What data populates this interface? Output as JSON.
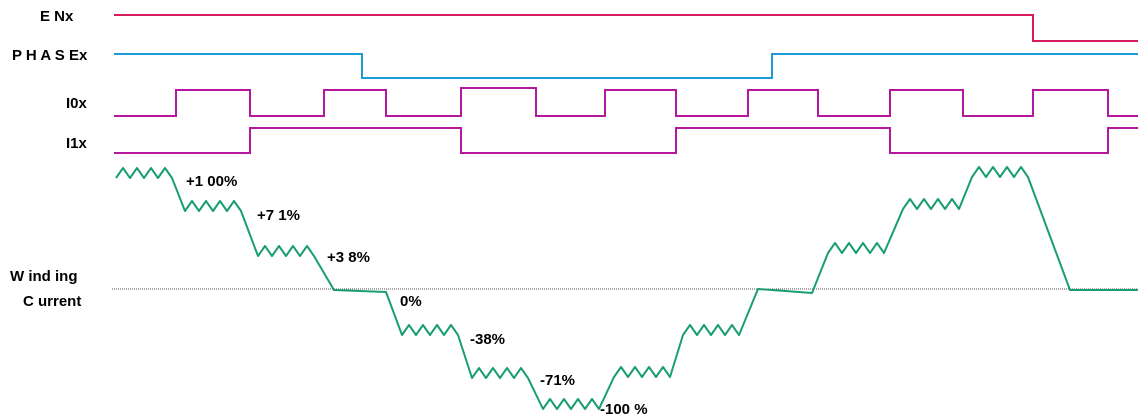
{
  "signals": {
    "en": {
      "label": "E Nx",
      "color": "#d81b60"
    },
    "phase": {
      "label": "P H A S Ex",
      "color": "#1e9ad6"
    },
    "i0": {
      "label": "I0x",
      "color": "#b5179e"
    },
    "i1": {
      "label": "I1x",
      "color": "#b5179e"
    }
  },
  "winding": {
    "label_line1": "W ind ing",
    "label_line2": "C urrent",
    "color": "#1a9e6e",
    "zero_line_color": "#555555"
  },
  "levels": {
    "p100": "+1 00%",
    "p71": "+7 1%",
    "p38": "+3 8%",
    "zero": "0%",
    "m38": "-38%",
    "m71": "-71%",
    "m100": "-100 %"
  }
}
